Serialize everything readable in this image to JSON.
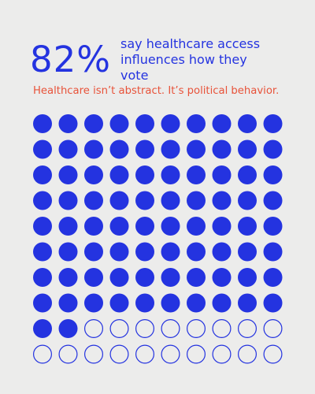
{
  "colors": {
    "background": "#ececeb",
    "primary": "#2433e0",
    "accent": "#e8533a"
  },
  "headline": {
    "stat": "82%",
    "text": "say healthcare access influences how they vote"
  },
  "subtitle": "Healthcare isn’t abstract. It’s political behavior.",
  "chart_data": {
    "type": "waffle",
    "total_units": 100,
    "filled_units": 82,
    "columns": 10,
    "rows": 10,
    "fill_order": "row-major",
    "filled_color": "#2433e0",
    "empty_style": "outline"
  }
}
